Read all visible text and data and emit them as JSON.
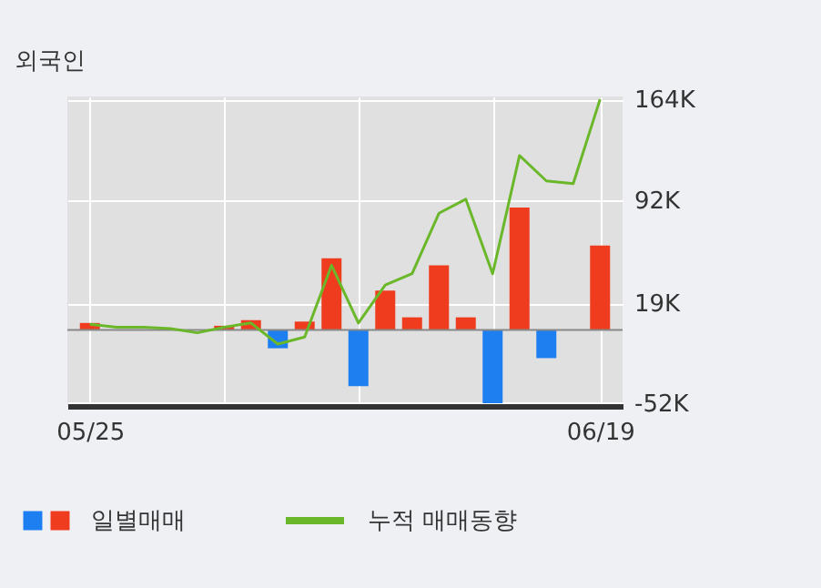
{
  "chart_data": {
    "type": "bar",
    "title": "외국인",
    "categories": [
      "05/25",
      null,
      null,
      null,
      null,
      null,
      null,
      null,
      null,
      null,
      null,
      null,
      null,
      null,
      null,
      null,
      null,
      null,
      null,
      "06/19"
    ],
    "series": [
      {
        "name": "일별매매",
        "colors": [
          "#f03c1e",
          "#f03c1e",
          "#f03c1e",
          "#f03c1e",
          "#f03c1e",
          "#f03c1e",
          "#f03c1e",
          "#1e7ff0",
          "#f03c1e",
          "#f03c1e",
          "#1e7ff0",
          "#f03c1e",
          "#f03c1e",
          "#f03c1e",
          "#f03c1e",
          "#1e7ff0",
          "#f03c1e",
          "#1e7ff0",
          "#f03c1e",
          "#f03c1e"
        ],
        "values": [
          5000,
          0,
          0,
          0,
          0,
          3000,
          7000,
          -13000,
          6000,
          51000,
          -40000,
          28000,
          9000,
          46000,
          9000,
          -52000,
          87000,
          -20000,
          0,
          60000
        ]
      },
      {
        "name": "누적 매매동향",
        "type": "line",
        "color": "#6ab82a",
        "values": [
          4000,
          2000,
          2000,
          1000,
          -2000,
          2000,
          5000,
          -10000,
          -5000,
          46000,
          5000,
          32000,
          40000,
          83000,
          93000,
          40000,
          124000,
          106000,
          104000,
          164000
        ]
      }
    ],
    "ylim": [
      -54000,
      166000
    ],
    "yticks": [
      {
        "value": -52000,
        "label": "-52K"
      },
      {
        "value": 19000,
        "label": "19K"
      },
      {
        "value": 92000,
        "label": "92K"
      },
      {
        "value": 164000,
        "label": "164K"
      }
    ],
    "ref_lines": [
      {
        "axis": "y",
        "value": 0,
        "color": "#888888"
      }
    ],
    "grid": true,
    "legend": "bottom"
  }
}
